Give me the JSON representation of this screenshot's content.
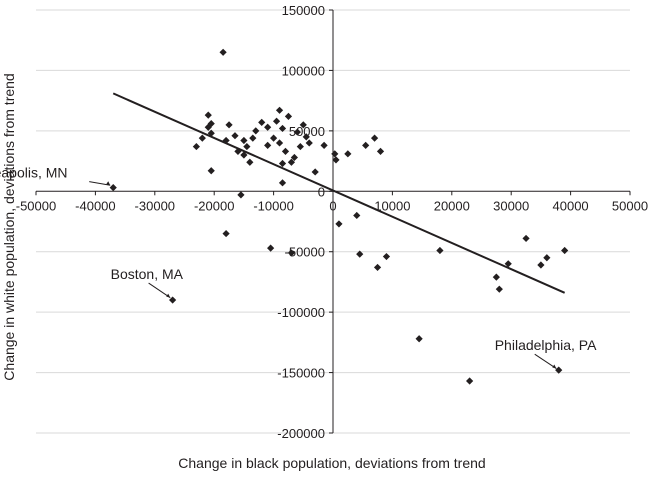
{
  "chart_data": {
    "type": "scatter",
    "title": "",
    "xlabel": "Change in black population, deviations from trend",
    "ylabel": "Change in white population, deviations from trend",
    "xlim": [
      -50000,
      50000
    ],
    "ylim": [
      -200000,
      150000
    ],
    "x_ticks": [
      -50000,
      -40000,
      -30000,
      -20000,
      -10000,
      0,
      10000,
      20000,
      30000,
      40000,
      50000
    ],
    "y_ticks": [
      150000,
      100000,
      50000,
      0,
      -50000,
      -100000,
      -150000,
      -200000
    ],
    "x_tick_labels": [
      "-50000",
      "-40000",
      "-30000",
      "-20000",
      "-10000",
      "0",
      "10000",
      "20000",
      "30000",
      "40000",
      "50000"
    ],
    "y_tick_labels": [
      "150000",
      "100000",
      "50000",
      "0",
      "-50000",
      "-100000",
      "-150000",
      "-200000"
    ],
    "grid": "horizontal",
    "marker": "diamond",
    "marker_color": "#231f20",
    "line_color": "#231f20",
    "axis_color": "#231f20",
    "grid_color": "#d9d9d9",
    "trendline": {
      "x": [
        -37000,
        39000
      ],
      "y": [
        81000,
        -84000
      ]
    },
    "points": [
      {
        "x": -37000,
        "y": 3000
      },
      {
        "x": -27000,
        "y": -90000
      },
      {
        "x": -23000,
        "y": 37000
      },
      {
        "x": -22000,
        "y": 44000
      },
      {
        "x": -21000,
        "y": 63000
      },
      {
        "x": -21000,
        "y": 53000
      },
      {
        "x": -20500,
        "y": 56000
      },
      {
        "x": -20500,
        "y": 48000
      },
      {
        "x": -20500,
        "y": 17000
      },
      {
        "x": -18500,
        "y": 115000
      },
      {
        "x": -18000,
        "y": 42000
      },
      {
        "x": -18000,
        "y": -35000
      },
      {
        "x": -17500,
        "y": 55000
      },
      {
        "x": -16500,
        "y": 46000
      },
      {
        "x": -16000,
        "y": 33000
      },
      {
        "x": -15500,
        "y": -3000
      },
      {
        "x": -15000,
        "y": 42000
      },
      {
        "x": -15000,
        "y": 30000
      },
      {
        "x": -14500,
        "y": 37000
      },
      {
        "x": -14000,
        "y": 24000
      },
      {
        "x": -13500,
        "y": 44000
      },
      {
        "x": -13000,
        "y": 50000
      },
      {
        "x": -12000,
        "y": 57000
      },
      {
        "x": -11000,
        "y": 38000
      },
      {
        "x": -11000,
        "y": 53000
      },
      {
        "x": -10500,
        "y": -47000
      },
      {
        "x": -10000,
        "y": 44000
      },
      {
        "x": -9500,
        "y": 58000
      },
      {
        "x": -9000,
        "y": 67000
      },
      {
        "x": -9000,
        "y": 40000
      },
      {
        "x": -8500,
        "y": 52000
      },
      {
        "x": -8500,
        "y": 23000
      },
      {
        "x": -8500,
        "y": 7000
      },
      {
        "x": -8000,
        "y": 33000
      },
      {
        "x": -7500,
        "y": 62000
      },
      {
        "x": -7000,
        "y": 24000
      },
      {
        "x": -7000,
        "y": -51000
      },
      {
        "x": -6500,
        "y": 28000
      },
      {
        "x": -6000,
        "y": 49000
      },
      {
        "x": -5500,
        "y": 37000
      },
      {
        "x": -5000,
        "y": 55000
      },
      {
        "x": -4500,
        "y": 45000
      },
      {
        "x": -4000,
        "y": 40000
      },
      {
        "x": -3000,
        "y": 16000
      },
      {
        "x": -1500,
        "y": 38000
      },
      {
        "x": 300,
        "y": 31000
      },
      {
        "x": 500,
        "y": 26000
      },
      {
        "x": 1000,
        "y": -27000
      },
      {
        "x": 2500,
        "y": 31000
      },
      {
        "x": 4000,
        "y": -20000
      },
      {
        "x": 4500,
        "y": -52000
      },
      {
        "x": 5500,
        "y": 38000
      },
      {
        "x": 7000,
        "y": 44000
      },
      {
        "x": 7500,
        "y": -63000
      },
      {
        "x": 8000,
        "y": 33000
      },
      {
        "x": 9000,
        "y": -54000
      },
      {
        "x": 14500,
        "y": -122000
      },
      {
        "x": 18000,
        "y": -49000
      },
      {
        "x": 23000,
        "y": -157000
      },
      {
        "x": 27500,
        "y": -71000
      },
      {
        "x": 28000,
        "y": -81000
      },
      {
        "x": 29500,
        "y": -60000
      },
      {
        "x": 32500,
        "y": -39000
      },
      {
        "x": 35000,
        "y": -61000
      },
      {
        "x": 36000,
        "y": -55000
      },
      {
        "x": 38000,
        "y": -148000
      },
      {
        "x": 39000,
        "y": -49000
      }
    ],
    "annotations": [
      {
        "text": "Minneapolis, MN",
        "x": -37000,
        "y": 3000
      },
      {
        "text": "Boston, MA",
        "x": -27000,
        "y": -90000
      },
      {
        "text": "Philadelphia, PA",
        "x": 38000,
        "y": -148000
      }
    ]
  }
}
